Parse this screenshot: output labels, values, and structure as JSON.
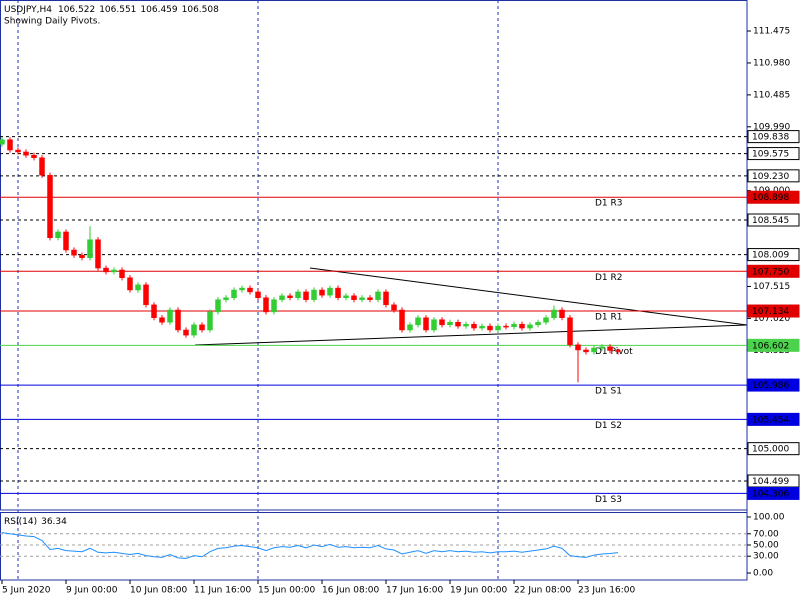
{
  "chart_data": {
    "type": "candlestick",
    "symbol": "USDJPY,H4",
    "subtitle": "Showing Daily Pivots.",
    "categories": [
      "5 Jun 2020",
      null,
      null,
      null,
      null,
      null,
      null,
      null,
      "9 Jun 00:00",
      null,
      null,
      null,
      null,
      null,
      null,
      null,
      "10 Jun 08:00",
      null,
      null,
      null,
      null,
      null,
      null,
      null,
      "11 Jun 16:00",
      null,
      null,
      null,
      null,
      null,
      null,
      null,
      "15 Jun 00:00",
      null,
      null,
      null,
      null,
      null,
      null,
      null,
      "16 Jun 08:00",
      null,
      null,
      null,
      null,
      null,
      null,
      null,
      "17 Jun 16:00",
      null,
      null,
      null,
      null,
      null,
      null,
      null,
      "19 Jun 00:00",
      null,
      null,
      null,
      null,
      null,
      null,
      null,
      "22 Jun 08:00",
      null,
      null,
      null,
      null,
      null,
      null,
      null,
      "23 Jun 16:00",
      null,
      null,
      null,
      null,
      null
    ],
    "open": [
      109.72,
      109.79,
      109.63,
      109.6,
      109.55,
      109.51,
      109.24,
      108.27,
      108.36,
      108.08,
      108.0,
      107.96,
      108.24,
      107.8,
      107.74,
      107.77,
      107.65,
      107.46,
      107.54,
      107.23,
      107.03,
      106.96,
      107.15,
      106.84,
      106.76,
      106.92,
      106.84,
      107.12,
      107.31,
      107.34,
      107.46,
      107.49,
      107.43,
      107.34,
      107.12,
      107.31,
      107.37,
      107.34,
      107.43,
      107.31,
      107.46,
      107.38,
      107.49,
      107.34,
      107.37,
      107.31,
      107.34,
      107.31,
      107.43,
      107.23,
      107.15,
      106.84,
      106.92,
      107.03,
      106.84,
      107.0,
      106.92,
      106.96,
      106.9,
      106.93,
      106.87,
      106.9,
      106.84,
      106.9,
      106.89,
      106.93,
      106.87,
      106.92,
      106.96,
      107.03,
      107.15,
      107.03,
      106.61,
      106.53,
      106.5,
      106.56,
      106.58,
      106.522
    ],
    "high": [
      109.83,
      109.83,
      109.67,
      109.64,
      109.59,
      109.55,
      109.28,
      108.4,
      108.4,
      108.12,
      108.04,
      108.45,
      108.28,
      107.84,
      107.81,
      107.81,
      107.69,
      107.58,
      107.58,
      107.27,
      107.07,
      107.19,
      107.19,
      106.88,
      106.96,
      106.96,
      107.16,
      107.35,
      107.38,
      107.5,
      107.53,
      107.53,
      107.47,
      107.38,
      107.35,
      107.41,
      107.41,
      107.47,
      107.47,
      107.5,
      107.5,
      107.53,
      107.53,
      107.41,
      107.41,
      107.38,
      107.38,
      107.47,
      107.47,
      107.27,
      107.19,
      106.96,
      107.07,
      107.07,
      107.04,
      107.04,
      107.0,
      107.0,
      106.97,
      106.97,
      106.94,
      106.94,
      106.94,
      106.94,
      106.97,
      106.97,
      106.96,
      107.0,
      107.07,
      107.22,
      107.19,
      107.07,
      106.65,
      106.57,
      106.6,
      106.62,
      106.62,
      106.551
    ],
    "low": [
      109.68,
      109.59,
      109.56,
      109.51,
      109.47,
      109.2,
      108.23,
      108.23,
      108.04,
      107.96,
      107.92,
      107.92,
      107.76,
      107.7,
      107.7,
      107.61,
      107.42,
      107.42,
      107.19,
      106.99,
      106.92,
      106.92,
      106.8,
      106.72,
      106.72,
      106.8,
      106.8,
      107.08,
      107.27,
      107.3,
      107.42,
      107.39,
      107.3,
      107.08,
      107.08,
      107.27,
      107.3,
      107.3,
      107.27,
      107.27,
      107.34,
      107.34,
      107.3,
      107.3,
      107.27,
      107.27,
      107.27,
      107.27,
      107.19,
      107.11,
      106.8,
      106.8,
      106.88,
      106.8,
      106.8,
      106.88,
      106.88,
      106.86,
      106.86,
      106.83,
      106.83,
      106.8,
      106.8,
      106.85,
      106.85,
      106.83,
      106.83,
      106.88,
      106.92,
      106.99,
      106.99,
      106.57,
      106.03,
      106.46,
      106.46,
      106.52,
      106.48,
      106.459
    ],
    "close": [
      109.79,
      109.63,
      109.6,
      109.55,
      109.51,
      109.24,
      108.27,
      108.36,
      108.08,
      108.0,
      107.96,
      108.24,
      107.8,
      107.74,
      107.77,
      107.65,
      107.46,
      107.54,
      107.23,
      107.03,
      106.96,
      107.15,
      106.84,
      106.76,
      106.92,
      106.84,
      107.12,
      107.31,
      107.34,
      107.46,
      107.49,
      107.43,
      107.34,
      107.12,
      107.31,
      107.37,
      107.34,
      107.43,
      107.31,
      107.46,
      107.38,
      107.49,
      107.34,
      107.37,
      107.31,
      107.34,
      107.31,
      107.43,
      107.23,
      107.15,
      106.84,
      106.92,
      107.03,
      106.84,
      107.0,
      106.92,
      106.96,
      106.9,
      106.93,
      106.87,
      106.9,
      106.84,
      106.9,
      106.89,
      106.93,
      106.87,
      106.92,
      106.96,
      107.03,
      107.15,
      107.03,
      106.61,
      106.53,
      106.5,
      106.56,
      106.58,
      106.522,
      106.508
    ],
    "up_color": "#32cd32",
    "down_color": "#ff0000",
    "ylim": [
      104.049,
      111.956
    ],
    "yticks": [
      111.475,
      {
        "value": 110.98,
        "label": "110.980"
      },
      110.485,
      {
        "value": 109.99,
        "label": "109.990"
      },
      {
        "value": 109,
        "label": "109.000"
      },
      107.515,
      {
        "value": 107.02,
        "label": "107.020"
      },
      106.525
    ],
    "levels": [
      {
        "value": 109.838,
        "color": "#000000",
        "style": "dashed"
      },
      {
        "value": 109.575,
        "color": "#000000",
        "style": "dashed"
      },
      {
        "value": 109.23,
        "label": "109.230",
        "color": "#000000",
        "style": "dashed"
      },
      {
        "value": 108.898,
        "name": "D1 R3",
        "color": "#e00000",
        "style": "solid"
      },
      {
        "value": 108.545,
        "color": "#000000",
        "style": "dashed"
      },
      {
        "value": 108.009,
        "color": "#000000",
        "style": "dashed"
      },
      {
        "value": 107.75,
        "label": "107.750",
        "name": "D1 R2",
        "color": "#e00000",
        "style": "solid"
      },
      {
        "value": 107.134,
        "name": "D1 R1",
        "color": "#e00000",
        "style": "solid"
      },
      {
        "value": 106.602,
        "name": "D1 Pivot",
        "color": "#4cd24c",
        "style": "solid"
      },
      {
        "value": 105.986,
        "name": "D1 S1",
        "color": "#0000e0",
        "style": "solid"
      },
      {
        "value": 105.454,
        "name": "D1 S2",
        "color": "#0000e0",
        "style": "solid"
      },
      {
        "value": 105,
        "label": "105.000",
        "color": "#000000",
        "style": "dashed"
      },
      {
        "value": 104.499,
        "color": "#000000",
        "style": "dashed"
      },
      {
        "value": 104.306,
        "name": "D1 S3",
        "color": "#0000e0",
        "style": "solid"
      }
    ],
    "rsi": {
      "title": "RSI(14)",
      "color": "#1e90ff",
      "values": [
        72,
        70,
        68,
        66,
        65,
        58,
        42,
        44,
        40,
        39,
        38,
        44,
        37,
        36,
        37,
        35,
        33,
        35,
        31,
        29,
        28,
        33,
        27,
        26,
        31,
        29,
        38,
        44,
        45,
        48,
        49,
        47,
        45,
        40,
        45,
        47,
        46,
        49,
        45,
        50,
        47,
        51,
        46,
        47,
        45,
        46,
        45,
        49,
        43,
        41,
        34,
        37,
        40,
        35,
        40,
        38,
        40,
        38,
        39,
        37,
        38,
        36,
        38,
        38,
        39,
        37,
        39,
        41,
        43,
        48,
        44,
        31,
        29,
        28,
        32,
        34,
        34.8,
        36.34
      ],
      "ylim": [
        -12.5,
        108.9
      ],
      "yticks": [
        {
          "value": 100,
          "label": "100.00"
        },
        {
          "value": 70,
          "label": "70.00"
        },
        {
          "value": 50,
          "label": "50.00"
        },
        {
          "value": 30,
          "label": "30.00"
        },
        {
          "value": 0,
          "label": "0.00"
        }
      ],
      "levels": [
        70,
        50,
        30
      ]
    }
  }
}
